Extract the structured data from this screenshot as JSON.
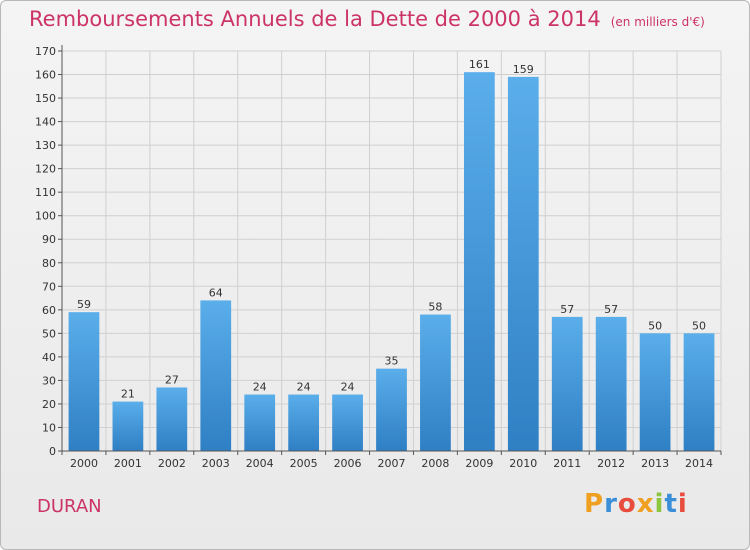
{
  "chart_data": {
    "type": "bar",
    "title": "Remboursements Annuels de la Dette de 2000 à 2014",
    "unit_note": "(en milliers d'€)",
    "categories": [
      "2000",
      "2001",
      "2002",
      "2003",
      "2004",
      "2005",
      "2006",
      "2007",
      "2008",
      "2009",
      "2010",
      "2011",
      "2012",
      "2013",
      "2014"
    ],
    "values": [
      59,
      21,
      27,
      64,
      24,
      24,
      24,
      35,
      58,
      161,
      159,
      57,
      57,
      50,
      50
    ],
    "ylim": [
      0,
      170
    ],
    "yticks": [
      0,
      10,
      20,
      30,
      40,
      50,
      60,
      70,
      80,
      90,
      100,
      110,
      120,
      130,
      140,
      150,
      160,
      170
    ],
    "grid": true,
    "xlabel": "",
    "ylabel": ""
  },
  "footer": {
    "commune": "DURAN",
    "logo": "Proxiti"
  },
  "colors": {
    "title": "#cc3366",
    "bar_top": "#5aaeea",
    "bar_bottom": "#2f7fc4"
  }
}
